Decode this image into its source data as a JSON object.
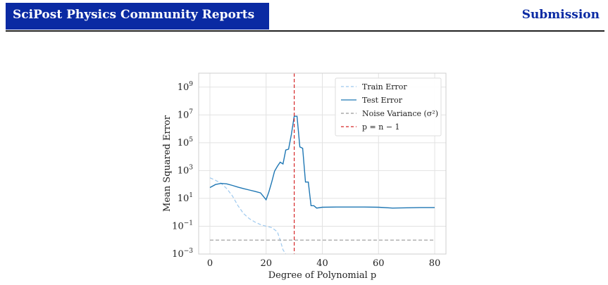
{
  "header": {
    "journal": "SciPost Physics Community Reports",
    "section": "Submission"
  },
  "colors": {
    "brand": "#0a2aa3",
    "train": "#9ec9ef",
    "test": "#1f77b4",
    "noise": "#999999",
    "threshold": "#d62728"
  },
  "chart_data": {
    "type": "line",
    "xlabel": "Degree of Polynomial p",
    "ylabel": "Mean Squared Error",
    "xlim": [
      -4,
      84
    ],
    "ylim_log10": [
      -3,
      10
    ],
    "yscale": "log",
    "grid": true,
    "legend_position": "top-right",
    "x_ticks": [
      0,
      20,
      40,
      60,
      80
    ],
    "y_ticks": [
      {
        "exp": 9,
        "base": "10",
        "sup": "9"
      },
      {
        "exp": 7,
        "base": "10",
        "sup": "7"
      },
      {
        "exp": 5,
        "base": "10",
        "sup": "5"
      },
      {
        "exp": 3,
        "base": "10",
        "sup": "3"
      },
      {
        "exp": 1,
        "base": "10",
        "sup": "1"
      },
      {
        "exp": -1,
        "base": "10",
        "sup": "−1"
      },
      {
        "exp": -3,
        "base": "10",
        "sup": "−3"
      }
    ],
    "legend": [
      {
        "label": "Train Error",
        "style": "dashed",
        "color": "#9ec9ef"
      },
      {
        "label": "Test Error",
        "style": "solid",
        "color": "#1f77b4"
      },
      {
        "label": "Noise Variance (σ²)",
        "style": "dashed",
        "color": "#999999"
      },
      {
        "label": "p = n − 1",
        "style": "dashed",
        "color": "#d62728"
      }
    ],
    "series": [
      {
        "name": "Train Error",
        "style": "dashed",
        "color": "#9ec9ef",
        "x": [
          0,
          2,
          4,
          6,
          8,
          10,
          12,
          14,
          16,
          18,
          20,
          22,
          24,
          25,
          26,
          27
        ],
        "y": [
          300,
          200,
          120,
          50,
          15,
          3,
          0.8,
          0.35,
          0.2,
          0.13,
          0.1,
          0.08,
          0.04,
          0.01,
          0.002,
          0.001
        ]
      },
      {
        "name": "Test Error",
        "style": "solid",
        "color": "#1f77b4",
        "x": [
          0,
          2,
          4,
          6,
          8,
          10,
          12,
          14,
          16,
          18,
          20,
          21,
          22,
          23,
          24,
          25,
          26,
          27,
          28,
          29,
          30,
          31,
          32,
          33,
          34,
          35,
          36,
          37,
          38,
          40,
          45,
          50,
          55,
          60,
          65,
          70,
          75,
          80
        ],
        "y": [
          60,
          100,
          120,
          110,
          85,
          65,
          50,
          40,
          32,
          25,
          8,
          30,
          150,
          900,
          2000,
          4000,
          3000,
          30000,
          35000,
          400000,
          8000000,
          8000000,
          50000,
          40000,
          150,
          150,
          3,
          3,
          2,
          2.3,
          2.4,
          2.4,
          2.4,
          2.3,
          2,
          2.1,
          2.2,
          2.2
        ]
      },
      {
        "name": "Noise Variance (σ²)",
        "style": "dashed",
        "color": "#999999",
        "x": [
          0,
          80
        ],
        "y": [
          0.01,
          0.01
        ]
      }
    ],
    "vline": {
      "name": "p = n − 1",
      "x": 30,
      "color": "#d62728"
    }
  }
}
